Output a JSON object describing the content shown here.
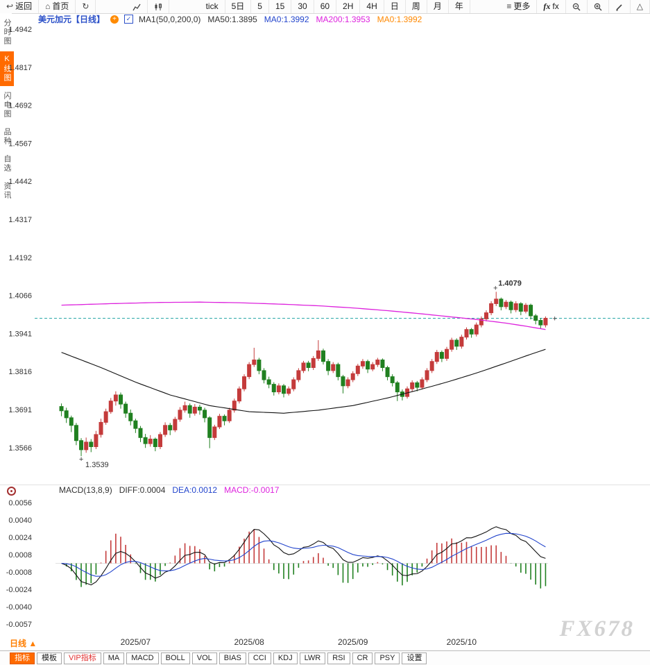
{
  "toolbar": {
    "left": [
      {
        "icon": "back-icon",
        "label": "返回",
        "name": "back-button"
      },
      {
        "icon": "home-icon",
        "label": "首页",
        "name": "home-button"
      },
      {
        "icon": "refresh-icon",
        "label": "",
        "name": "refresh-button"
      }
    ],
    "chart_types": [
      {
        "icon": "line-chart-icon",
        "name": "line-chart-type-button"
      },
      {
        "icon": "candle-chart-icon",
        "name": "candle-chart-type-button"
      }
    ],
    "intervals": [
      "tick",
      "5日",
      "5",
      "15",
      "30",
      "60",
      "2H",
      "4H",
      "日",
      "周",
      "月",
      "年"
    ],
    "right": [
      {
        "icon": "menu-icon",
        "label": "更多",
        "name": "more-button"
      },
      {
        "icon": "fx-icon",
        "label": "fx",
        "name": "fx-indicator-button"
      },
      {
        "icon": "zoom-out-icon",
        "label": "",
        "name": "zoom-out-button"
      },
      {
        "icon": "zoom-in-icon",
        "label": "",
        "name": "zoom-in-button"
      },
      {
        "icon": "draw-icon",
        "label": "",
        "name": "draw-button"
      },
      {
        "icon": "triangle-icon",
        "label": "",
        "name": "shapes-button"
      }
    ]
  },
  "sidebar": {
    "items": [
      {
        "label": "分时图",
        "name": "sidebar-item-timeshare",
        "active": false
      },
      {
        "label": "K线图",
        "name": "sidebar-item-kline",
        "active": true
      },
      {
        "label": "闪电图",
        "name": "sidebar-item-lightning",
        "active": false
      },
      {
        "label": "品种",
        "name": "sidebar-item-symbols",
        "active": false
      },
      {
        "label": "自选",
        "name": "sidebar-item-watchlist",
        "active": false
      },
      {
        "label": "资讯",
        "name": "sidebar-item-news",
        "active": false
      }
    ]
  },
  "chart_header": {
    "symbol_title": "美元加元【日线】",
    "legends": [
      {
        "text": "MA1(50,0,200,0)",
        "color": "#333333"
      },
      {
        "text": "MA50:1.3895",
        "color": "#333333"
      },
      {
        "text": "MA0:1.3992",
        "color": "#2244cc"
      },
      {
        "text": "MA200:1.3953",
        "color": "#dd22dd"
      },
      {
        "text": "MA0:1.3992",
        "color": "#ff8800"
      }
    ]
  },
  "macd_header": {
    "legends": [
      {
        "text": "MACD(13,8,9)",
        "color": "#333333"
      },
      {
        "text": "DIFF:0.0004",
        "color": "#333333"
      },
      {
        "text": "DEA:0.0012",
        "color": "#2244cc"
      },
      {
        "text": "MACD:-0.0017",
        "color": "#dd22dd"
      }
    ]
  },
  "bottom": {
    "period_label": "日线 ▲",
    "tabs": [
      {
        "label": "指标",
        "name": "tab-indicator",
        "style": "active"
      },
      {
        "label": "模板",
        "name": "tab-template",
        "style": "normal"
      },
      {
        "label": "VIP指标",
        "name": "tab-vip-indicator",
        "style": "vip"
      },
      {
        "label": "MA",
        "name": "tab-ma",
        "style": "normal"
      },
      {
        "label": "MACD",
        "name": "tab-macd",
        "style": "normal"
      },
      {
        "label": "BOLL",
        "name": "tab-boll",
        "style": "normal"
      },
      {
        "label": "VOL",
        "name": "tab-vol",
        "style": "normal"
      },
      {
        "label": "BIAS",
        "name": "tab-bias",
        "style": "normal"
      },
      {
        "label": "CCI",
        "name": "tab-cci",
        "style": "normal"
      },
      {
        "label": "KDJ",
        "name": "tab-kdj",
        "style": "normal"
      },
      {
        "label": "LWR",
        "name": "tab-lwr",
        "style": "normal"
      },
      {
        "label": "RSI",
        "name": "tab-rsi",
        "style": "normal"
      },
      {
        "label": "CR",
        "name": "tab-cr",
        "style": "normal"
      },
      {
        "label": "PSY",
        "name": "tab-psy",
        "style": "normal"
      },
      {
        "label": "设置",
        "name": "tab-settings",
        "style": "normal"
      }
    ]
  },
  "watermark": "FX678",
  "chart_data": {
    "type": "candlestick",
    "symbol": "美元加元",
    "period": "日线",
    "price_axis_ticks": [
      "1.4942",
      "1.4817",
      "1.4692",
      "1.4567",
      "1.4442",
      "1.4317",
      "1.4192",
      "1.4066",
      "1.3941",
      "1.3816",
      "1.3691",
      "1.3566"
    ],
    "x_axis_labels": [
      {
        "label": "2025/07",
        "index": 15
      },
      {
        "label": "2025/08",
        "index": 38
      },
      {
        "label": "2025/09",
        "index": 59
      },
      {
        "label": "2025/10",
        "index": 81
      }
    ],
    "current_price": 1.3992,
    "high_annotation": {
      "text": "1.4079",
      "index": 88,
      "price": 1.4079,
      "color": "#e03030"
    },
    "low_annotation": {
      "text": "1.3539",
      "index": 4,
      "price": 1.3539,
      "color": "#8a6d1a"
    },
    "colors": {
      "up": "#c43b3b",
      "down": "#208020",
      "current_line": "#2aa8a8"
    },
    "ma50": {
      "period": 50,
      "color": "#111111",
      "points": [
        [
          0,
          1.388
        ],
        [
          8,
          1.383
        ],
        [
          15,
          1.3782
        ],
        [
          22,
          1.374
        ],
        [
          30,
          1.3705
        ],
        [
          38,
          1.3685
        ],
        [
          45,
          1.368
        ],
        [
          52,
          1.369
        ],
        [
          59,
          1.3705
        ],
        [
          66,
          1.373
        ],
        [
          72,
          1.3755
        ],
        [
          78,
          1.3782
        ],
        [
          84,
          1.3812
        ],
        [
          90,
          1.3845
        ],
        [
          94,
          1.3868
        ],
        [
          98,
          1.389
        ]
      ]
    },
    "ma200": {
      "period": 200,
      "color": "#dd22dd",
      "points": [
        [
          0,
          1.4035
        ],
        [
          10,
          1.404
        ],
        [
          20,
          1.4044
        ],
        [
          28,
          1.4045
        ],
        [
          36,
          1.4043
        ],
        [
          45,
          1.4038
        ],
        [
          52,
          1.4033
        ],
        [
          59,
          1.4026
        ],
        [
          66,
          1.4017
        ],
        [
          72,
          1.4008
        ],
        [
          78,
          1.3998
        ],
        [
          84,
          1.3988
        ],
        [
          90,
          1.3976
        ],
        [
          94,
          1.3966
        ],
        [
          98,
          1.3955
        ]
      ]
    },
    "candles": [
      [
        1.3702,
        1.3712,
        1.367,
        1.3688
      ],
      [
        1.3688,
        1.3698,
        1.3648,
        1.3665
      ],
      [
        1.3665,
        1.3672,
        1.3618,
        1.364
      ],
      [
        1.364,
        1.3648,
        1.3575,
        1.359
      ],
      [
        1.359,
        1.3598,
        1.3539,
        1.356
      ],
      [
        1.356,
        1.36,
        1.355,
        1.3585
      ],
      [
        1.3585,
        1.3595,
        1.3552,
        1.357
      ],
      [
        1.357,
        1.3622,
        1.3562,
        1.361
      ],
      [
        1.361,
        1.3662,
        1.36,
        1.365
      ],
      [
        1.365,
        1.3695,
        1.3642,
        1.3685
      ],
      [
        1.3685,
        1.373,
        1.3678,
        1.372
      ],
      [
        1.372,
        1.3752,
        1.3705,
        1.374
      ],
      [
        1.374,
        1.3748,
        1.3695,
        1.371
      ],
      [
        1.371,
        1.3718,
        1.3665,
        1.368
      ],
      [
        1.368,
        1.3692,
        1.364,
        1.3655
      ],
      [
        1.3655,
        1.3662,
        1.3615,
        1.363
      ],
      [
        1.363,
        1.3638,
        1.3585,
        1.36
      ],
      [
        1.36,
        1.3612,
        1.3566,
        1.358
      ],
      [
        1.358,
        1.3608,
        1.357,
        1.3595
      ],
      [
        1.3595,
        1.36,
        1.3555,
        1.357
      ],
      [
        1.357,
        1.3618,
        1.3562,
        1.361
      ],
      [
        1.361,
        1.365,
        1.3602,
        1.364
      ],
      [
        1.364,
        1.3648,
        1.3608,
        1.3625
      ],
      [
        1.3625,
        1.3668,
        1.3618,
        1.366
      ],
      [
        1.366,
        1.37,
        1.3652,
        1.369
      ],
      [
        1.369,
        1.3718,
        1.3682,
        1.3705
      ],
      [
        1.3705,
        1.3712,
        1.3665,
        1.368
      ],
      [
        1.368,
        1.371,
        1.3672,
        1.37
      ],
      [
        1.37,
        1.3708,
        1.3675,
        1.369
      ],
      [
        1.369,
        1.3698,
        1.365,
        1.3665
      ],
      [
        1.3665,
        1.367,
        1.3565,
        1.36
      ],
      [
        1.36,
        1.3642,
        1.3592,
        1.3635
      ],
      [
        1.3635,
        1.3678,
        1.3628,
        1.367
      ],
      [
        1.367,
        1.3676,
        1.364,
        1.3655
      ],
      [
        1.3655,
        1.3698,
        1.3648,
        1.369
      ],
      [
        1.369,
        1.3728,
        1.3682,
        1.372
      ],
      [
        1.372,
        1.3768,
        1.3712,
        1.376
      ],
      [
        1.376,
        1.3808,
        1.3752,
        1.38
      ],
      [
        1.38,
        1.3848,
        1.3792,
        1.384
      ],
      [
        1.384,
        1.3895,
        1.3832,
        1.3855
      ],
      [
        1.3855,
        1.3862,
        1.3808,
        1.382
      ],
      [
        1.382,
        1.3828,
        1.3778,
        1.379
      ],
      [
        1.379,
        1.38,
        1.3762,
        1.3775
      ],
      [
        1.3775,
        1.3782,
        1.3738,
        1.375
      ],
      [
        1.375,
        1.3778,
        1.3742,
        1.377
      ],
      [
        1.377,
        1.3776,
        1.3732,
        1.3745
      ],
      [
        1.3745,
        1.3768,
        1.3738,
        1.376
      ],
      [
        1.376,
        1.3798,
        1.3752,
        1.379
      ],
      [
        1.379,
        1.3828,
        1.3782,
        1.382
      ],
      [
        1.382,
        1.3852,
        1.3812,
        1.3845
      ],
      [
        1.3845,
        1.3852,
        1.3818,
        1.383
      ],
      [
        1.383,
        1.3868,
        1.3822,
        1.386
      ],
      [
        1.386,
        1.392,
        1.3852,
        1.3885
      ],
      [
        1.3885,
        1.3892,
        1.384,
        1.385
      ],
      [
        1.385,
        1.3858,
        1.3805,
        1.382
      ],
      [
        1.382,
        1.3848,
        1.3812,
        1.384
      ],
      [
        1.384,
        1.3846,
        1.3788,
        1.38
      ],
      [
        1.38,
        1.3806,
        1.3745,
        1.377
      ],
      [
        1.377,
        1.3798,
        1.3762,
        1.379
      ],
      [
        1.379,
        1.3818,
        1.3782,
        1.381
      ],
      [
        1.381,
        1.3842,
        1.3802,
        1.3835
      ],
      [
        1.3835,
        1.3858,
        1.3826,
        1.385
      ],
      [
        1.385,
        1.3856,
        1.3812,
        1.3825
      ],
      [
        1.3825,
        1.3848,
        1.3818,
        1.384
      ],
      [
        1.384,
        1.3862,
        1.3832,
        1.3855
      ],
      [
        1.3855,
        1.386,
        1.3818,
        1.383
      ],
      [
        1.383,
        1.3836,
        1.3788,
        1.38
      ],
      [
        1.38,
        1.3808,
        1.3768,
        1.378
      ],
      [
        1.378,
        1.3786,
        1.372,
        1.375
      ],
      [
        1.375,
        1.3758,
        1.3722,
        1.3735
      ],
      [
        1.3735,
        1.3768,
        1.3728,
        1.376
      ],
      [
        1.376,
        1.3788,
        1.3752,
        1.378
      ],
      [
        1.378,
        1.3786,
        1.3752,
        1.3765
      ],
      [
        1.3765,
        1.3798,
        1.3758,
        1.379
      ],
      [
        1.379,
        1.3828,
        1.3782,
        1.382
      ],
      [
        1.382,
        1.3858,
        1.3812,
        1.385
      ],
      [
        1.385,
        1.3888,
        1.3842,
        1.388
      ],
      [
        1.388,
        1.3886,
        1.3848,
        1.386
      ],
      [
        1.386,
        1.3898,
        1.3852,
        1.389
      ],
      [
        1.389,
        1.3928,
        1.3882,
        1.392
      ],
      [
        1.392,
        1.3926,
        1.3888,
        1.39
      ],
      [
        1.39,
        1.3938,
        1.3892,
        1.393
      ],
      [
        1.393,
        1.3962,
        1.3922,
        1.3955
      ],
      [
        1.3955,
        1.396,
        1.3928,
        1.394
      ],
      [
        1.394,
        1.3978,
        1.3932,
        1.397
      ],
      [
        1.397,
        1.3998,
        1.3962,
        1.399
      ],
      [
        1.399,
        1.4018,
        1.3982,
        1.401
      ],
      [
        1.401,
        1.4048,
        1.4002,
        1.404
      ],
      [
        1.404,
        1.4079,
        1.4032,
        1.4055
      ],
      [
        1.4055,
        1.406,
        1.4018,
        1.403
      ],
      [
        1.403,
        1.4052,
        1.4022,
        1.4045
      ],
      [
        1.4045,
        1.405,
        1.4008,
        1.402
      ],
      [
        1.402,
        1.4048,
        1.4012,
        1.404
      ],
      [
        1.404,
        1.4045,
        1.4002,
        1.4015
      ],
      [
        1.4015,
        1.4042,
        1.4008,
        1.4035
      ],
      [
        1.4035,
        1.404,
        1.3988,
        1.4
      ],
      [
        1.4,
        1.4006,
        1.3972,
        1.3985
      ],
      [
        1.3985,
        1.3992,
        1.3958,
        1.397
      ],
      [
        1.397,
        1.3998,
        1.3962,
        1.3992
      ]
    ],
    "macd": {
      "params": [
        13,
        8,
        9
      ],
      "axis_ticks": [
        "0.0056",
        "0.0040",
        "0.0024",
        "0.0008",
        "-0.0008",
        "-0.0024",
        "-0.0040",
        "-0.0057"
      ],
      "diff_color": "#111111",
      "dea_color": "#2244cc",
      "hist_up_color": "#c43b3b",
      "hist_down_color": "#208020"
    }
  }
}
